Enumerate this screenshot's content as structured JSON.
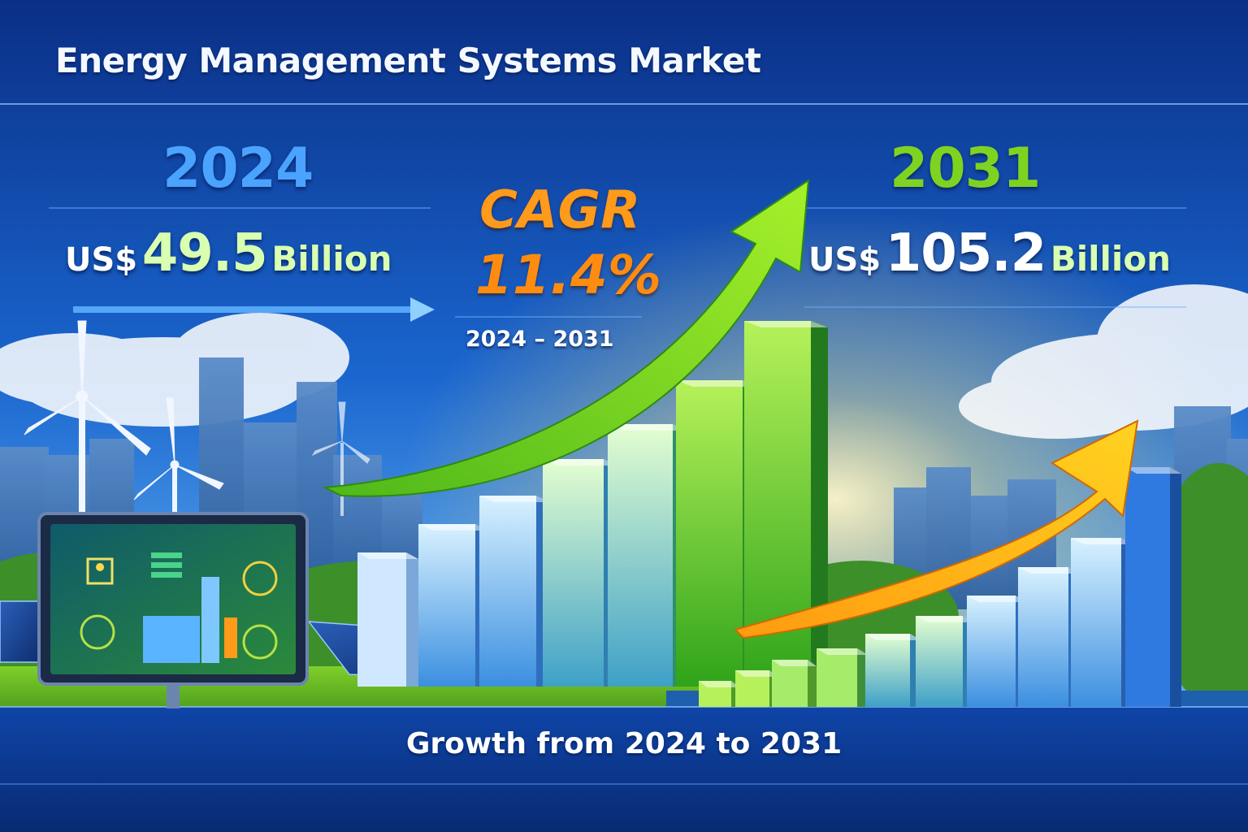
{
  "title": "Energy Management Systems Market",
  "start": {
    "year": "2024",
    "currency": "US$",
    "value": "49.5",
    "unit": "Billion"
  },
  "cagr": {
    "label": "CAGR",
    "value": "11.4%",
    "period": "2024 – 2031"
  },
  "end": {
    "year": "2031",
    "currency": "US$",
    "value": "105.2",
    "unit": "Billion"
  },
  "footer": "Growth from 2024 to 2031",
  "colors": {
    "background_top": "#0a2f86",
    "background_bottom": "#0d4fb8",
    "year_2024": "#4aa3ff",
    "year_2031": "#7ed321",
    "cagr": "#ff8c10",
    "green_arrow": "#8be01f",
    "yellow_arrow": "#ffc21a"
  }
}
